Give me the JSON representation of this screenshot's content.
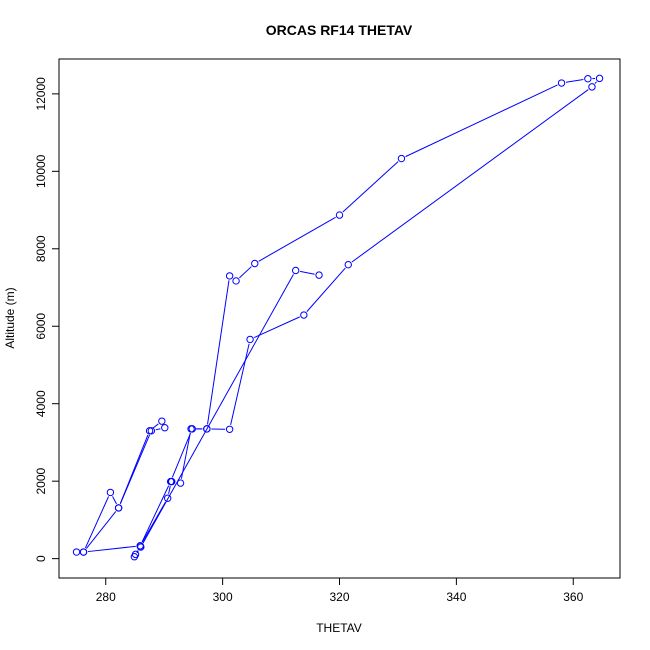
{
  "chart_data": {
    "type": "line",
    "title": "ORCAS RF14 THETAV",
    "xlabel": "THETAV",
    "ylabel": "Altitude (m)",
    "xlim": [
      272,
      368
    ],
    "ylim": [
      -500,
      12900
    ],
    "xticks": [
      280,
      300,
      320,
      340,
      360
    ],
    "yticks": [
      0,
      2000,
      4000,
      6000,
      8000,
      10000,
      12000
    ],
    "grid": false,
    "legend": "none",
    "color": "#0000ff",
    "marker": "open-circle",
    "series": [
      {
        "x": [
          275,
          276.2,
          280.8,
          282.2,
          287.5,
          289.6,
          290.1,
          287.8,
          282.2,
          276.2,
          285.9,
          290.6,
          291.2,
          291.3,
          292.8,
          294.6,
          297.3,
          301.2,
          302.3,
          305.5,
          320,
          330.6,
          358,
          362.5,
          364.5,
          363.2,
          321.5,
          313.9,
          304.7,
          301.2,
          297.3,
          294.8,
          291.1,
          285.9,
          285.1,
          284.9,
          286,
          312.5,
          316.5
        ],
        "y": [
          170,
          170,
          1710,
          1310,
          3300,
          3550,
          3380,
          3300,
          1310,
          170,
          330,
          1560,
          1990,
          1990,
          1950,
          3350,
          3350,
          7300,
          7170,
          7620,
          8870,
          10330,
          12280,
          12390,
          12400,
          12180,
          7590,
          6290,
          5660,
          3340,
          3350,
          3350,
          1990,
          330,
          110,
          50,
          300,
          7440,
          7320
        ]
      }
    ]
  }
}
